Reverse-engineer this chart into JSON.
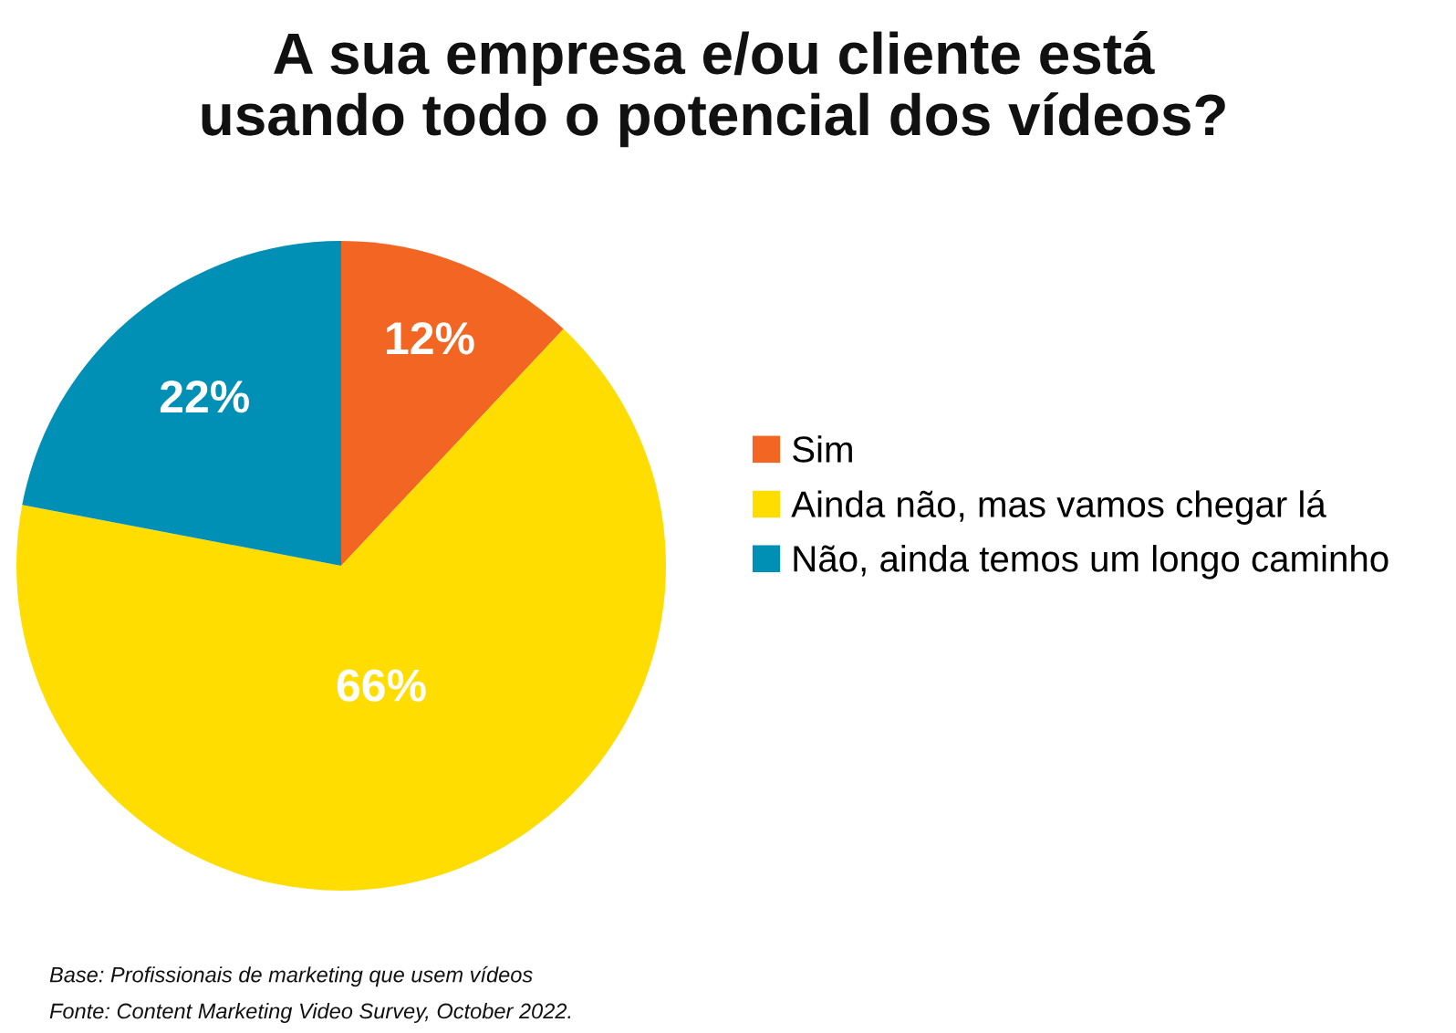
{
  "chart_data": {
    "type": "pie",
    "title": "A sua empresa e/ou cliente está\nusando todo o potencial dos vídeos?",
    "categories": [
      "Sim",
      "Ainda não, mas vamos chegar lá",
      "Não, ainda temos um longo caminho"
    ],
    "values": [
      12,
      66,
      22
    ],
    "colors": [
      "#f26522",
      "#ffdd00",
      "#0090b5"
    ],
    "value_labels": [
      "12%",
      "66%",
      "22%"
    ],
    "legend": "right",
    "annotations": [
      "Base: Profissionais de marketing que usem vídeos",
      "Fonte: Content Marketing Video Survey, October 2022."
    ]
  }
}
